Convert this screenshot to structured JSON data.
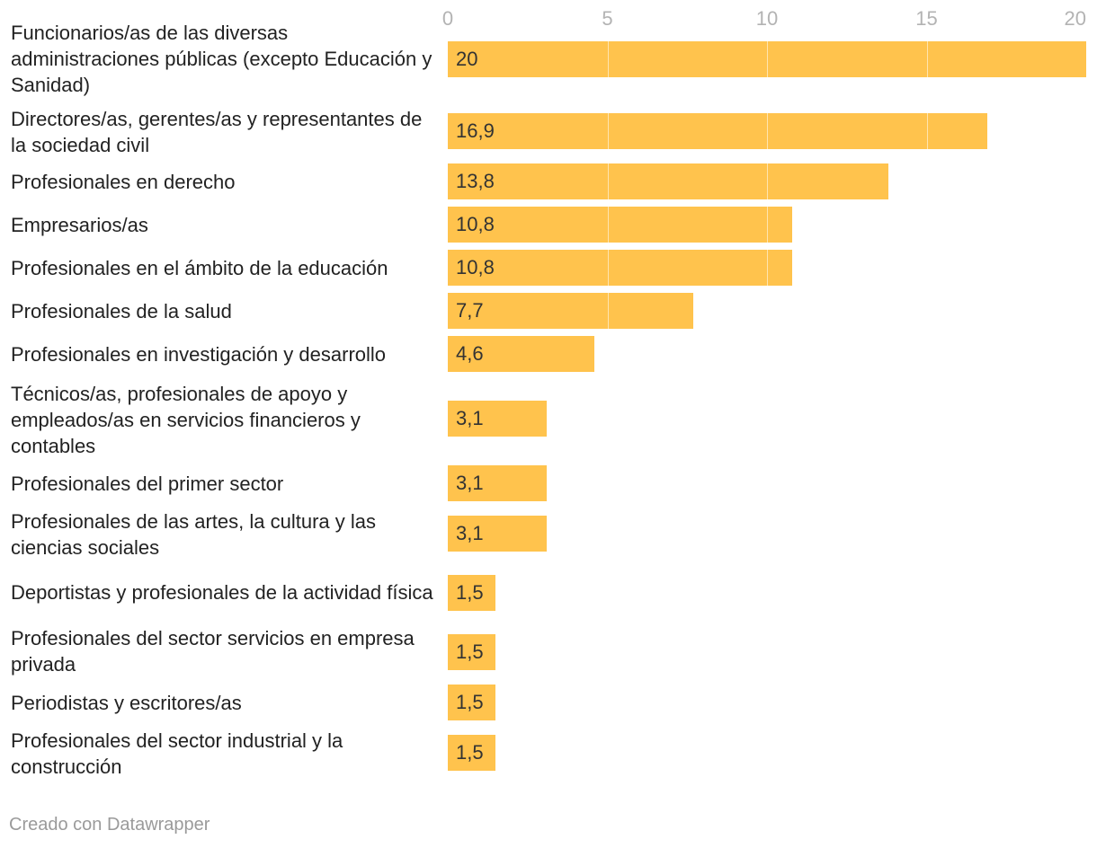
{
  "chart_data": {
    "type": "bar",
    "orientation": "horizontal",
    "categories": [
      "Funcionarios/as de las diversas administraciones públicas (excepto Educación y Sanidad)",
      "Directores/as, gerentes/as y representantes de la sociedad civil",
      "Profesionales en derecho",
      "Empresarios/as",
      "Profesionales en el ámbito de la educación",
      "Profesionales de la salud",
      "Profesionales en investigación y desarrollo",
      "Técnicos/as, profesionales de apoyo y empleados/as en servicios financieros y contables",
      "Profesionales del primer sector",
      "Profesionales de las artes, la cultura y las ciencias sociales",
      "Deportistas y profesionales de la actividad física",
      "Profesionales del sector servicios en empresa privada",
      "Periodistas y escritores/as",
      "Profesionales del sector industrial y la construcción"
    ],
    "values": [
      20,
      16.9,
      13.8,
      10.8,
      10.8,
      7.7,
      4.6,
      3.1,
      3.1,
      3.1,
      1.5,
      1.5,
      1.5,
      1.5
    ],
    "value_labels": [
      "20",
      "16,9",
      "13,8",
      "10,8",
      "10,8",
      "7,7",
      "4,6",
      "3,1",
      "3,1",
      "3,1",
      "1,5",
      "1,5",
      "1,5",
      "1,5"
    ],
    "xticks": [
      0,
      5,
      10,
      15,
      20
    ],
    "xlim": [
      0,
      20
    ],
    "grid": true,
    "bar_color": "#ffc34d",
    "title": "",
    "xlabel": "",
    "ylabel": ""
  },
  "footer": {
    "credit": "Creado con Datawrapper"
  }
}
